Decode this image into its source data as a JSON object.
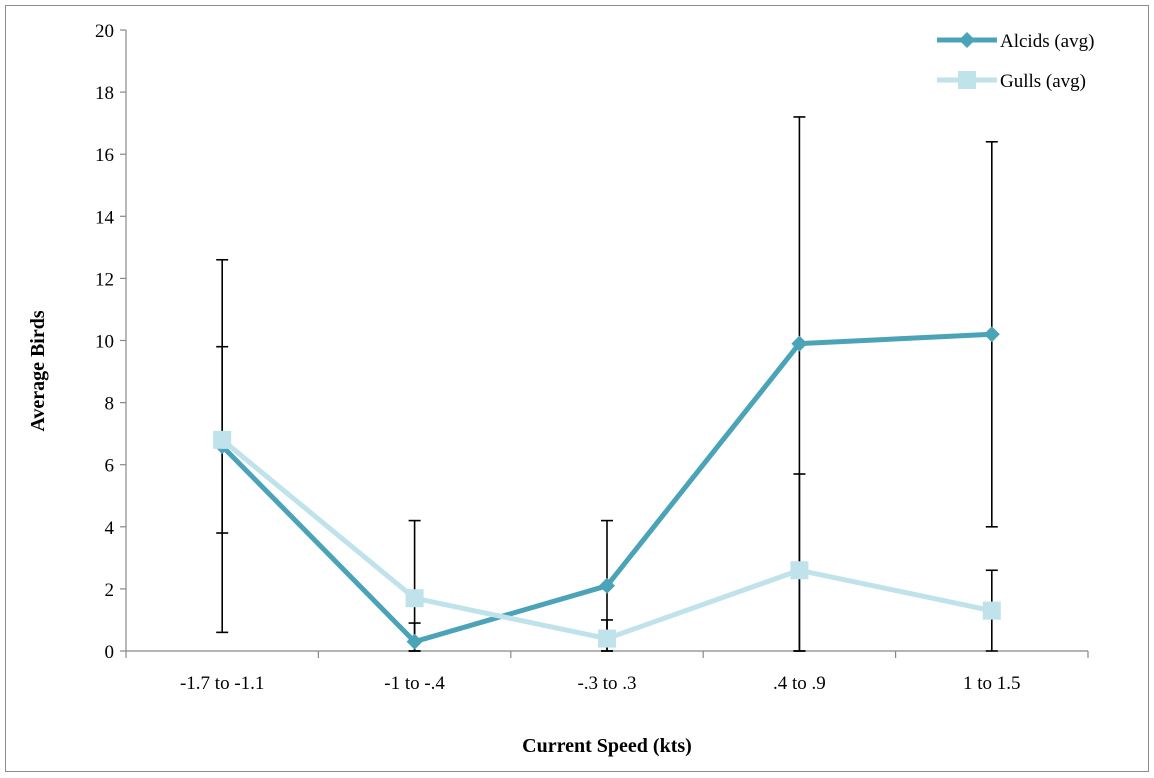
{
  "chart_data": {
    "type": "line",
    "title": "",
    "xlabel": "Current Speed (kts)",
    "ylabel": "Average Birds",
    "categories": [
      "-1.7 to -1.1",
      "-1 to -.4",
      "-.3 to .3",
      ".4 to .9",
      "1 to 1.5"
    ],
    "ylim": [
      0,
      20
    ],
    "yticks": [
      0,
      2,
      4,
      6,
      8,
      10,
      12,
      14,
      16,
      18,
      20
    ],
    "grid": false,
    "legend_position": "top-right",
    "series": [
      {
        "name": "Alcids (avg)",
        "color": "#4BA3B8",
        "marker": "diamond",
        "values": [
          6.6,
          0.3,
          2.1,
          9.9,
          10.2
        ],
        "error_low": [
          0.6,
          0.0,
          0.0,
          0.0,
          4.0
        ],
        "error_high": [
          12.6,
          0.9,
          4.2,
          17.2,
          16.4
        ]
      },
      {
        "name": "Gulls (avg)",
        "color": "#BFE2EB",
        "marker": "square",
        "values": [
          6.8,
          1.7,
          0.4,
          2.6,
          1.3
        ],
        "error_low": [
          3.8,
          0.0,
          0.0,
          0.0,
          0.0
        ],
        "error_high": [
          9.8,
          4.2,
          1.0,
          5.7,
          2.6
        ]
      }
    ]
  }
}
